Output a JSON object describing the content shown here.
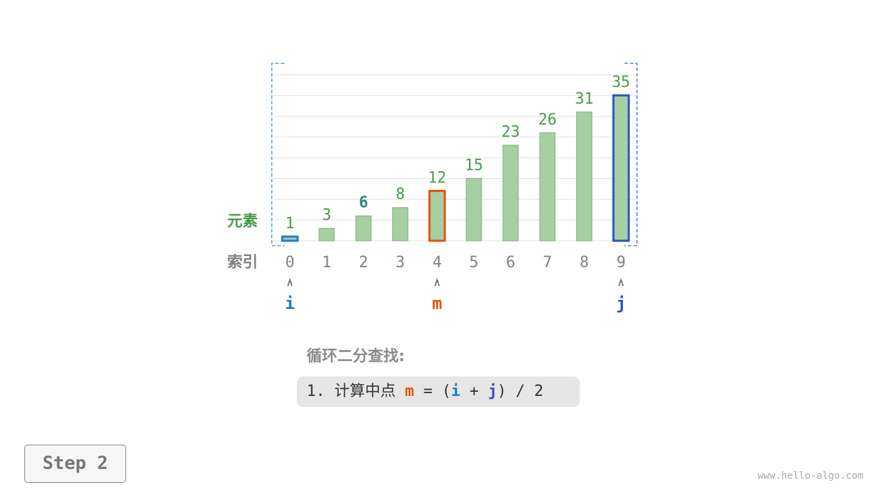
{
  "labels": {
    "elements": "元素",
    "indices": "索引"
  },
  "array": {
    "values": [
      1,
      3,
      6,
      8,
      12,
      15,
      23,
      26,
      31,
      35
    ],
    "indices": [
      "0",
      "1",
      "2",
      "3",
      "4",
      "5",
      "6",
      "7",
      "8",
      "9"
    ],
    "highlight_value_index": 2
  },
  "pointers": [
    {
      "name": "i",
      "index": 0,
      "color": "#1a7fc8"
    },
    {
      "name": "m",
      "index": 4,
      "color": "#e8500a"
    },
    {
      "name": "j",
      "index": 9,
      "color": "#3050c8"
    }
  ],
  "colors": {
    "bar_fill": "#a6cfa2",
    "bar_stroke": "#7fb07a",
    "value_text": "#4a9a4a",
    "highlight_value": "#2a8a80",
    "index_text": "#808080",
    "i_range": "#4aa0e0",
    "j_range": "#5a78e0"
  },
  "text": {
    "title": "循环二分查找:",
    "step_prefix": "1. 计算中点 ",
    "step_m": "m",
    "step_eq": " = (",
    "step_i": "i",
    "step_plus": " + ",
    "step_j": "j",
    "step_end": ") / 2",
    "step_button": "Step 2",
    "watermark": "www.hello-algo.com"
  }
}
